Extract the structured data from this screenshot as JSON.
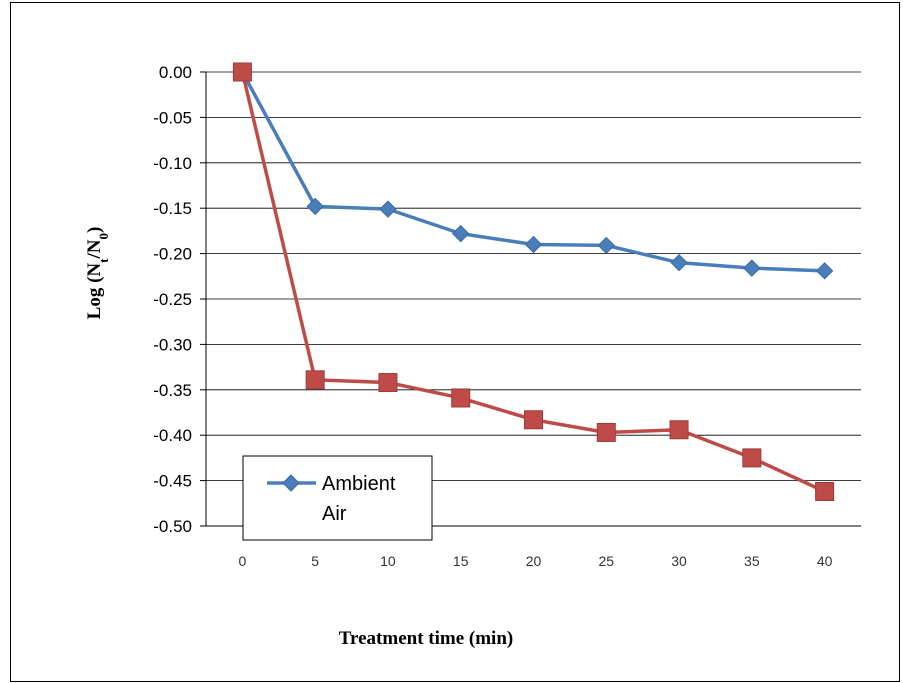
{
  "chart_data": {
    "type": "line",
    "title": "",
    "xlabel": "Treatment time (min)",
    "ylabel_parts": {
      "prefix": "Log (N",
      "sub1": "t",
      "mid": "/N",
      "sub2": "0",
      "suffix": ")"
    },
    "ylim": [
      -0.5,
      0.0
    ],
    "yticks": [
      "0.00",
      "-0.05",
      "-0.10",
      "-0.15",
      "-0.20",
      "-0.25",
      "-0.30",
      "-0.35",
      "-0.40",
      "-0.45",
      "-0.50"
    ],
    "ytick_values": [
      0.0,
      -0.05,
      -0.1,
      -0.15,
      -0.2,
      -0.25,
      -0.3,
      -0.35,
      -0.4,
      -0.45,
      -0.5
    ],
    "x": [
      0,
      5,
      10,
      15,
      20,
      25,
      30,
      35,
      40
    ],
    "xticks": [
      "0",
      "5",
      "10",
      "15",
      "20",
      "25",
      "30",
      "35",
      "40"
    ],
    "grid": "horizontal",
    "legend_position": "bottom-left",
    "series": [
      {
        "name_lines": [
          "Ambient",
          "Air"
        ],
        "color": "#4a7ebb",
        "marker": "diamond",
        "values": [
          0.0,
          -0.148,
          -0.151,
          -0.178,
          -0.19,
          -0.191,
          -0.21,
          -0.216,
          -0.219
        ]
      },
      {
        "color": "#be4b48",
        "marker": "square",
        "values": [
          0.0,
          -0.339,
          -0.342,
          -0.359,
          -0.383,
          -0.397,
          -0.394,
          -0.425,
          -0.462
        ]
      }
    ]
  }
}
